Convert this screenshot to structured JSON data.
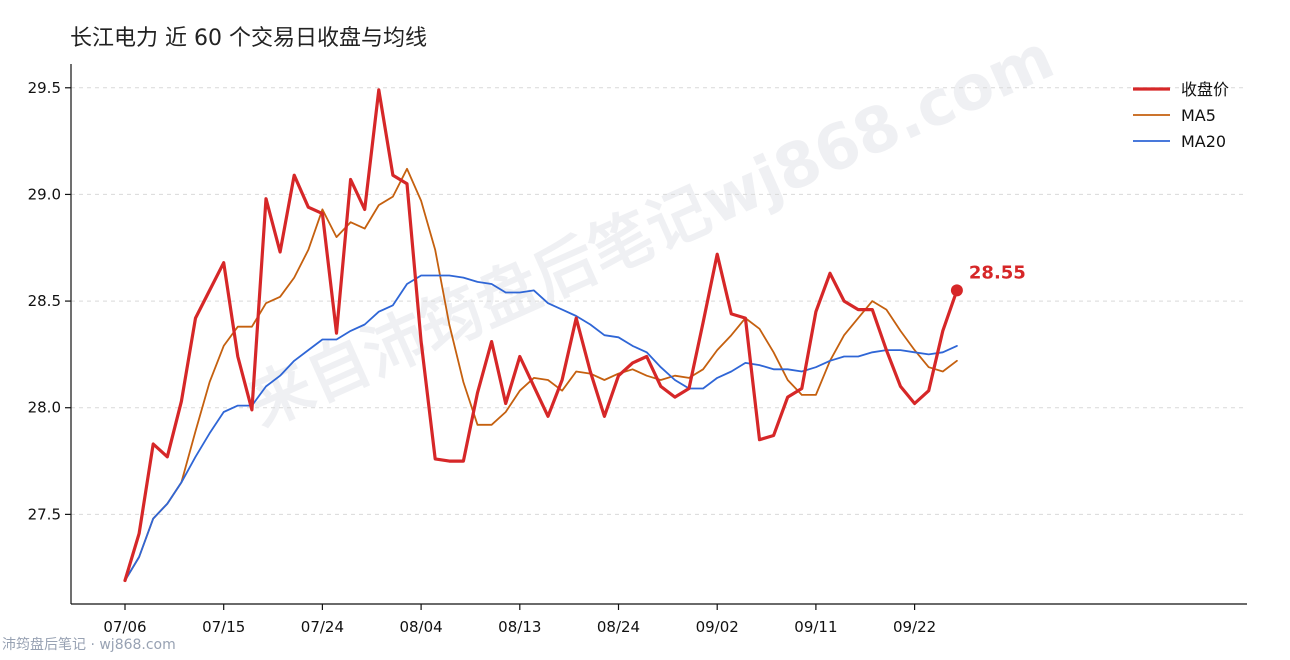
{
  "title": "长江电力 近 60 个交易日收盘与均线",
  "footer": "沛筠盘后笔记 · wj868.com",
  "watermark": "来自沛筠盘后笔记wj868.com",
  "chart_data": {
    "type": "line",
    "title": "长江电力 近 60 个交易日收盘与均线",
    "xlabel": "",
    "ylabel": "",
    "ylim": [
      27.08,
      29.6
    ],
    "yticks": [
      27.5,
      28.0,
      28.5,
      29.0,
      29.5
    ],
    "xticks": [
      {
        "index": 0,
        "label": "07/06"
      },
      {
        "index": 7,
        "label": "07/15"
      },
      {
        "index": 14,
        "label": "07/24"
      },
      {
        "index": 21,
        "label": "08/04"
      },
      {
        "index": 28,
        "label": "08/13"
      },
      {
        "index": 35,
        "label": "08/24"
      },
      {
        "index": 42,
        "label": "09/02"
      },
      {
        "index": 49,
        "label": "09/11"
      },
      {
        "index": 56,
        "label": "09/22"
      }
    ],
    "grid": "horizontal dashed",
    "legend_position": "top-right",
    "last_close_label": "28.55",
    "series": [
      {
        "name": "收盘价",
        "color": "#d62728",
        "values": [
          27.19,
          27.41,
          27.83,
          27.77,
          28.03,
          28.42,
          28.55,
          28.68,
          28.24,
          27.99,
          28.98,
          28.73,
          29.09,
          28.94,
          28.91,
          28.35,
          29.07,
          28.93,
          29.49,
          29.09,
          29.05,
          28.31,
          27.76,
          27.75,
          27.75,
          28.07,
          28.31,
          28.02,
          28.24,
          28.1,
          27.96,
          28.13,
          28.42,
          28.17,
          27.96,
          28.15,
          28.21,
          28.24,
          28.1,
          28.05,
          28.09,
          28.4,
          28.72,
          28.44,
          28.42,
          27.85,
          27.87,
          28.05,
          28.09,
          28.45,
          28.63,
          28.5,
          28.46,
          28.46,
          28.27,
          28.1,
          28.02,
          28.08,
          28.36,
          28.55
        ]
      },
      {
        "name": "MA5",
        "color": "#c5600f",
        "values": [
          27.19,
          27.3,
          27.48,
          27.55,
          27.65,
          27.89,
          28.12,
          28.29,
          28.38,
          28.38,
          28.49,
          28.52,
          28.61,
          28.74,
          28.93,
          28.8,
          28.87,
          28.84,
          28.95,
          28.99,
          29.12,
          28.97,
          28.74,
          28.39,
          28.12,
          27.92,
          27.92,
          27.98,
          28.08,
          28.14,
          28.13,
          28.08,
          28.17,
          28.16,
          28.13,
          28.16,
          28.18,
          28.15,
          28.13,
          28.15,
          28.14,
          28.18,
          28.27,
          28.34,
          28.42,
          28.37,
          28.26,
          28.13,
          28.06,
          28.06,
          28.22,
          28.34,
          28.42,
          28.5,
          28.46,
          28.36,
          28.27,
          28.19,
          28.17,
          28.22
        ]
      },
      {
        "name": "MA20",
        "color": "#2f66d6",
        "values": [
          27.19,
          27.3,
          27.48,
          27.55,
          27.65,
          27.77,
          27.88,
          27.98,
          28.01,
          28.01,
          28.1,
          28.15,
          28.22,
          28.27,
          28.32,
          28.32,
          28.36,
          28.39,
          28.45,
          28.48,
          28.58,
          28.62,
          28.62,
          28.62,
          28.61,
          28.59,
          28.58,
          28.54,
          28.54,
          28.55,
          28.49,
          28.46,
          28.43,
          28.39,
          28.34,
          28.33,
          28.29,
          28.26,
          28.19,
          28.13,
          28.09,
          28.09,
          28.14,
          28.17,
          28.21,
          28.2,
          28.18,
          28.18,
          28.17,
          28.19,
          28.22,
          28.24,
          28.24,
          28.26,
          28.27,
          28.27,
          28.26,
          28.25,
          28.26,
          28.29
        ]
      }
    ]
  }
}
